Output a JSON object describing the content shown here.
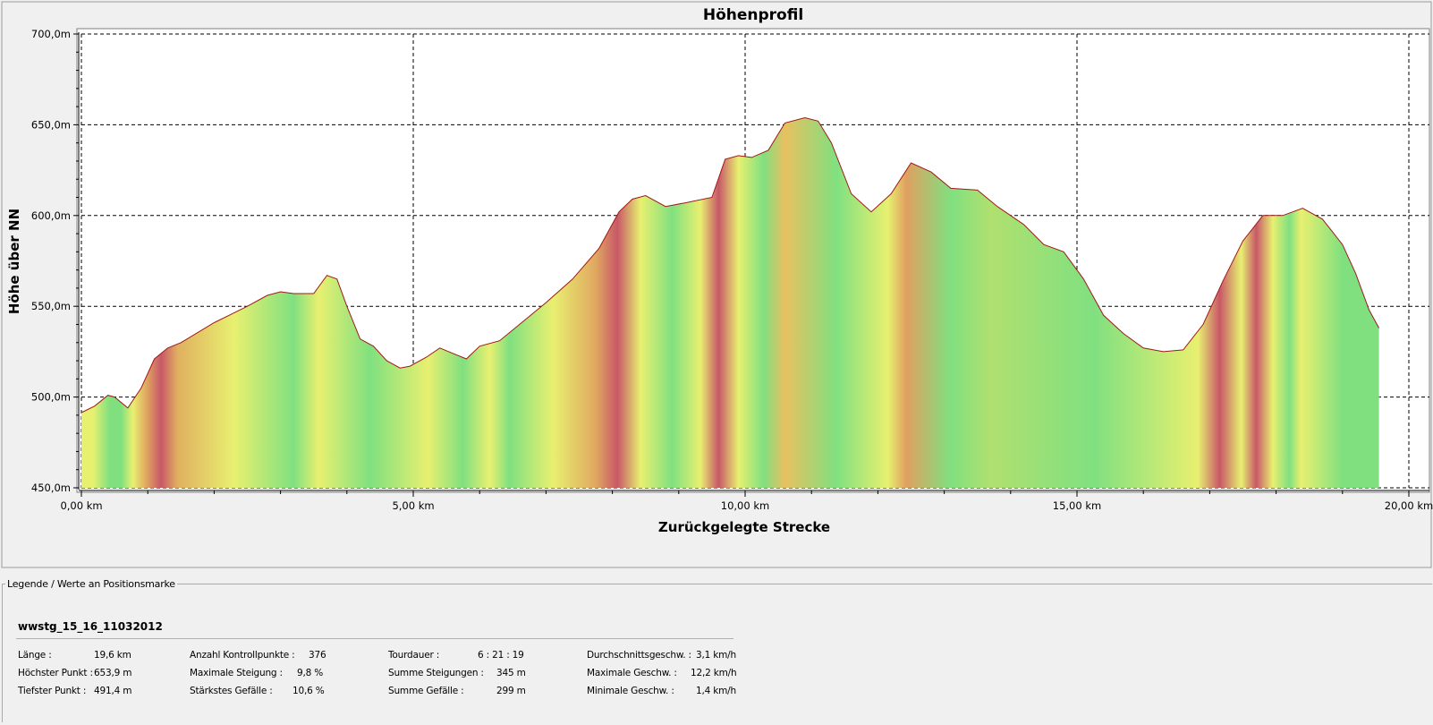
{
  "chart_data": {
    "type": "area",
    "title": "Höhenprofil",
    "xlabel": "Zurückgelegte Strecke",
    "ylabel": "Höhe über NN",
    "xlim": [
      0,
      20
    ],
    "ylim": [
      450,
      700
    ],
    "x_ticks": [
      {
        "value": 0,
        "label": "0,00 km"
      },
      {
        "value": 5,
        "label": "5,00 km"
      },
      {
        "value": 10,
        "label": "10,00 km"
      },
      {
        "value": 15,
        "label": "15,00 km"
      },
      {
        "value": 20,
        "label": "20,00 km"
      }
    ],
    "y_ticks": [
      {
        "value": 450,
        "label": "450,0m"
      },
      {
        "value": 500,
        "label": "500,0m"
      },
      {
        "value": 550,
        "label": "550,0m"
      },
      {
        "value": 600,
        "label": "600,0m"
      },
      {
        "value": 650,
        "label": "650,0m"
      },
      {
        "value": 700,
        "label": "700,0m"
      }
    ],
    "grid": true,
    "series": [
      {
        "x": [
          0.0,
          0.2,
          0.4,
          0.5,
          0.7,
          0.9,
          1.1,
          1.3,
          1.5,
          2.0,
          2.5,
          2.8,
          3.0,
          3.2,
          3.5,
          3.7,
          3.85,
          4.0,
          4.2,
          4.4,
          4.6,
          4.8,
          4.95,
          5.2,
          5.4,
          5.6,
          5.8,
          6.0,
          6.3,
          6.6,
          7.0,
          7.4,
          7.8,
          8.1,
          8.3,
          8.5,
          8.8,
          9.1,
          9.5,
          9.7,
          9.9,
          10.1,
          10.35,
          10.6,
          10.9,
          11.1,
          11.3,
          11.6,
          11.9,
          12.2,
          12.5,
          12.8,
          13.1,
          13.5,
          13.8,
          14.2,
          14.5,
          14.8,
          15.1,
          15.4,
          15.7,
          16.0,
          16.3,
          16.6,
          16.9,
          17.2,
          17.5,
          17.8,
          18.1,
          18.4,
          18.7,
          19.0,
          19.2,
          19.4,
          19.55
        ],
        "y": [
          491.4,
          495,
          501,
          500,
          494,
          505,
          521,
          527,
          530,
          541,
          550,
          556,
          558,
          557,
          557,
          567,
          565,
          550,
          532,
          528,
          520,
          516,
          517,
          522,
          527,
          524,
          521,
          528,
          531,
          540,
          552,
          565,
          582,
          602,
          609,
          611,
          605,
          607,
          610,
          631,
          633,
          632,
          636,
          651,
          653.9,
          652,
          640,
          612,
          602,
          612,
          629,
          624,
          615,
          614,
          605,
          595,
          584,
          580,
          565,
          545,
          535,
          527,
          525,
          526,
          540,
          564,
          586,
          600,
          600,
          604,
          598,
          584,
          568,
          548,
          538
        ]
      }
    ],
    "gradient": [
      {
        "from": 0.0,
        "to": 0.35,
        "color": "#e8f070"
      },
      {
        "from": 0.35,
        "to": 0.5,
        "color": "#80e080"
      },
      {
        "from": 0.5,
        "to": 0.7,
        "color": "#80e080"
      },
      {
        "from": 0.7,
        "to": 0.85,
        "color": "#e8f070"
      },
      {
        "from": 0.85,
        "to": 1.1,
        "color": "#e0a860"
      },
      {
        "from": 1.1,
        "to": 1.3,
        "color": "#c85868"
      },
      {
        "from": 1.3,
        "to": 1.6,
        "color": "#e0b060"
      },
      {
        "from": 1.6,
        "to": 3.0,
        "color": "#e8f070"
      },
      {
        "from": 3.0,
        "to": 3.4,
        "color": "#80e080"
      },
      {
        "from": 3.4,
        "to": 3.75,
        "color": "#e8f070"
      },
      {
        "from": 3.75,
        "to": 4.95,
        "color": "#80e080"
      },
      {
        "from": 4.95,
        "to": 5.5,
        "color": "#e8f070"
      },
      {
        "from": 5.5,
        "to": 6.0,
        "color": "#80e080"
      },
      {
        "from": 6.0,
        "to": 6.3,
        "color": "#e8f070"
      },
      {
        "from": 6.3,
        "to": 6.6,
        "color": "#80e080"
      },
      {
        "from": 6.6,
        "to": 7.6,
        "color": "#e8f070"
      },
      {
        "from": 7.6,
        "to": 7.9,
        "color": "#e0a860"
      },
      {
        "from": 7.9,
        "to": 8.25,
        "color": "#c85868"
      },
      {
        "from": 8.25,
        "to": 8.6,
        "color": "#e8f070"
      },
      {
        "from": 8.6,
        "to": 9.2,
        "color": "#80e080"
      },
      {
        "from": 9.2,
        "to": 9.45,
        "color": "#e8f070"
      },
      {
        "from": 9.45,
        "to": 9.75,
        "color": "#c85868"
      },
      {
        "from": 9.75,
        "to": 10.05,
        "color": "#e8f070"
      },
      {
        "from": 10.05,
        "to": 10.5,
        "color": "#80e080"
      },
      {
        "from": 10.5,
        "to": 10.7,
        "color": "#e8c060"
      },
      {
        "from": 10.7,
        "to": 12.05,
        "color": "#80e080"
      },
      {
        "from": 12.05,
        "to": 12.25,
        "color": "#e8f070"
      },
      {
        "from": 12.25,
        "to": 12.6,
        "color": "#e0a060"
      },
      {
        "from": 12.6,
        "to": 13.6,
        "color": "#80e080"
      },
      {
        "from": 13.6,
        "to": 13.8,
        "color": "#b0e070"
      },
      {
        "from": 13.8,
        "to": 16.7,
        "color": "#80e080"
      },
      {
        "from": 16.7,
        "to": 16.95,
        "color": "#e8f070"
      },
      {
        "from": 16.95,
        "to": 17.35,
        "color": "#c85868"
      },
      {
        "from": 17.35,
        "to": 17.6,
        "color": "#e8f070"
      },
      {
        "from": 17.6,
        "to": 17.8,
        "color": "#c85868"
      },
      {
        "from": 17.8,
        "to": 18.1,
        "color": "#e8f070"
      },
      {
        "from": 18.1,
        "to": 18.3,
        "color": "#80e080"
      },
      {
        "from": 18.3,
        "to": 18.45,
        "color": "#e8f070"
      },
      {
        "from": 18.45,
        "to": 19.55,
        "color": "#80e080"
      }
    ],
    "line_color": "#a01818"
  },
  "legend": {
    "caption": "Legende / Werte an Positionsmarke",
    "track_name": "wwstg_15_16_11032012",
    "stats": [
      {
        "label": "Länge :",
        "value": "19,6 km"
      },
      {
        "label": "Höchster Punkt :",
        "value": "653,9 m"
      },
      {
        "label": "Tiefster Punkt :",
        "value": "491,4 m"
      },
      {
        "label": "Anzahl Kontrollpunkte :",
        "value": "376"
      },
      {
        "label": "Maximale Steigung :",
        "value": "9,8 %"
      },
      {
        "label": "Stärkstes Gefälle :",
        "value": "10,6 %"
      },
      {
        "label": "Tourdauer :",
        "value": "6 : 21 : 19"
      },
      {
        "label": "Summe Steigungen :",
        "value": "345 m"
      },
      {
        "label": "Summe Gefälle :",
        "value": "299 m"
      },
      {
        "label": "Durchschnittsgeschw. :",
        "value": "3,1 km/h"
      },
      {
        "label": "Maximale Geschw. :",
        "value": "12,2 km/h"
      },
      {
        "label": "Minimale Geschw. :",
        "value": "1,4 km/h"
      }
    ]
  }
}
